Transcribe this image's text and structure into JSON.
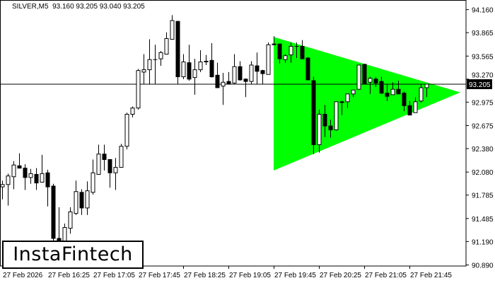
{
  "header": {
    "symbol": "SILVER,M5",
    "ohlc": "93.160 93.205 93.040 93.205"
  },
  "logo": {
    "text": "InstaFintech"
  },
  "colors": {
    "bull_body": "#ffffff",
    "bear_body": "#000000",
    "pattern_fill": "#00ff00",
    "price_label_bg": "#000000",
    "price_label_text": "#ffffff"
  },
  "chart_data": {
    "type": "candlestick",
    "symbol": "SILVER",
    "timeframe": "M5",
    "current_price": "93.205",
    "ylim": [
      90.89,
      94.16
    ],
    "yticks": [
      "94.160",
      "93.865",
      "93.565",
      "93.270",
      "92.975",
      "92.675",
      "92.380",
      "92.080",
      "91.785",
      "91.485",
      "91.190",
      "90.890"
    ],
    "xticks": [
      {
        "label": "27 Feb 2026",
        "index": 0
      },
      {
        "label": "27 Feb 16:25",
        "index": 8
      },
      {
        "label": "27 Feb 17:05",
        "index": 16
      },
      {
        "label": "27 Feb 17:45",
        "index": 24
      },
      {
        "label": "27 Feb 18:25",
        "index": 32
      },
      {
        "label": "27 Feb 19:05",
        "index": 40
      },
      {
        "label": "27 Feb 19:45",
        "index": 48
      },
      {
        "label": "27 Feb 20:25",
        "index": 56
      },
      {
        "label": "27 Feb 21:05",
        "index": 64
      },
      {
        "label": "27 Feb 21:45",
        "index": 72
      }
    ],
    "grid": false,
    "pattern": {
      "type": "bullish symmetrical triangle",
      "start_index": 48,
      "apex_index": 81,
      "upper_start": 93.81,
      "lower_start": 92.1,
      "apex_price": 93.1
    },
    "candles": [
      [
        91.89,
        91.97,
        91.73,
        91.92
      ],
      [
        91.92,
        92.06,
        91.65,
        92.03
      ],
      [
        92.02,
        92.22,
        91.86,
        92.17
      ],
      [
        92.16,
        92.32,
        92.13,
        92.13
      ],
      [
        92.13,
        92.18,
        91.85,
        92.01
      ],
      [
        92.01,
        92.12,
        91.93,
        92.06
      ],
      [
        92.05,
        92.13,
        91.85,
        91.94
      ],
      [
        91.95,
        92.3,
        91.95,
        92.06
      ],
      [
        92.07,
        92.11,
        91.64,
        91.89
      ],
      [
        91.9,
        91.93,
        91.2,
        91.23
      ],
      [
        91.23,
        91.63,
        91.16,
        91.19
      ],
      [
        91.18,
        91.42,
        91.16,
        91.37
      ],
      [
        91.36,
        91.63,
        91.29,
        91.57
      ],
      [
        91.55,
        91.97,
        91.53,
        91.83
      ],
      [
        91.82,
        91.86,
        91.53,
        91.62
      ],
      [
        91.62,
        91.96,
        91.53,
        91.84
      ],
      [
        91.82,
        92.24,
        91.79,
        92.07
      ],
      [
        92.05,
        92.43,
        92.05,
        92.31
      ],
      [
        92.31,
        92.43,
        92.1,
        92.24
      ],
      [
        92.24,
        92.24,
        91.88,
        92.07
      ],
      [
        92.07,
        92.26,
        91.85,
        92.14
      ],
      [
        92.14,
        92.44,
        92.14,
        92.41
      ],
      [
        92.41,
        92.84,
        92.37,
        92.82
      ],
      [
        92.82,
        92.92,
        92.78,
        92.9
      ],
      [
        92.9,
        93.4,
        92.88,
        93.38
      ],
      [
        93.36,
        93.59,
        93.21,
        93.39
      ],
      [
        93.39,
        93.78,
        93.21,
        93.52
      ],
      [
        93.52,
        93.71,
        93.21,
        93.52
      ],
      [
        93.53,
        93.63,
        93.44,
        93.61
      ],
      [
        93.59,
        93.87,
        93.59,
        93.79
      ],
      [
        93.78,
        94.09,
        93.78,
        94.02
      ],
      [
        94.01,
        94.01,
        93.21,
        93.3
      ],
      [
        93.3,
        93.59,
        93.27,
        93.49
      ],
      [
        93.48,
        93.71,
        93.25,
        93.27
      ],
      [
        93.29,
        93.53,
        93.07,
        93.39
      ],
      [
        93.39,
        93.64,
        93.36,
        93.49
      ],
      [
        93.49,
        93.58,
        93.45,
        93.5
      ],
      [
        93.51,
        93.73,
        93.29,
        93.3
      ],
      [
        93.32,
        93.48,
        93.16,
        93.16
      ],
      [
        93.18,
        93.35,
        92.94,
        93.23
      ],
      [
        93.24,
        93.36,
        93.21,
        93.21
      ],
      [
        93.22,
        93.59,
        93.21,
        93.43
      ],
      [
        93.43,
        93.5,
        93.25,
        93.26
      ],
      [
        93.27,
        93.28,
        93.04,
        93.24
      ],
      [
        93.24,
        93.5,
        93.21,
        93.45
      ],
      [
        93.44,
        93.61,
        93.21,
        93.37
      ],
      [
        93.38,
        93.39,
        93.21,
        93.34
      ],
      [
        93.33,
        93.74,
        93.33,
        93.71
      ],
      [
        93.72,
        93.82,
        93.71,
        93.71
      ],
      [
        93.72,
        93.72,
        93.47,
        93.53
      ],
      [
        93.52,
        93.59,
        93.48,
        93.57
      ],
      [
        93.58,
        93.74,
        93.48,
        93.69
      ],
      [
        93.69,
        93.74,
        93.54,
        93.69
      ],
      [
        93.69,
        93.77,
        93.53,
        93.53
      ],
      [
        93.54,
        93.55,
        93.26,
        93.26
      ],
      [
        93.25,
        93.3,
        92.31,
        92.43
      ],
      [
        92.43,
        92.88,
        92.33,
        92.82
      ],
      [
        92.82,
        92.94,
        92.53,
        92.67
      ],
      [
        92.67,
        92.75,
        92.52,
        92.62
      ],
      [
        92.62,
        92.98,
        92.61,
        92.98
      ],
      [
        92.98,
        92.99,
        92.81,
        92.97
      ],
      [
        92.98,
        93.08,
        92.9,
        93.08
      ],
      [
        93.08,
        93.13,
        93.04,
        93.13
      ],
      [
        93.14,
        93.45,
        93.14,
        93.45
      ],
      [
        93.46,
        93.46,
        93.21,
        93.21
      ],
      [
        93.23,
        93.3,
        93.08,
        93.28
      ],
      [
        93.27,
        93.3,
        93.17,
        93.22
      ],
      [
        93.24,
        93.3,
        93.08,
        93.09
      ],
      [
        93.09,
        93.21,
        92.99,
        93.05
      ],
      [
        93.07,
        93.23,
        93.07,
        93.14
      ],
      [
        93.14,
        93.25,
        93.08,
        93.08
      ],
      [
        93.09,
        93.11,
        92.86,
        92.93
      ],
      [
        92.93,
        92.99,
        92.81,
        92.81
      ],
      [
        92.84,
        93.04,
        92.84,
        92.98
      ],
      [
        92.99,
        93.21,
        92.97,
        93.16
      ],
      [
        93.16,
        93.205,
        93.04,
        93.205
      ]
    ]
  }
}
